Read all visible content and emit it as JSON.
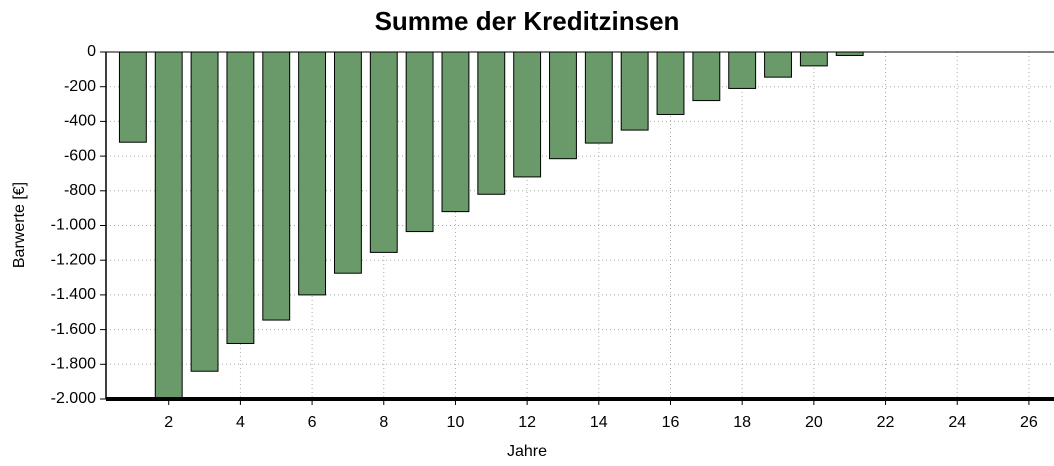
{
  "chart_data": {
    "type": "bar",
    "title": "Summe der Kreditzinsen",
    "x_label": "Jahre",
    "y_label": "Barwerte [€]",
    "x": [
      1,
      2,
      3,
      4,
      5,
      6,
      7,
      8,
      9,
      10,
      11,
      12,
      13,
      14,
      15,
      16,
      17,
      18,
      19,
      20,
      21
    ],
    "values": [
      -520,
      -2000,
      -1840,
      -1680,
      -1545,
      -1400,
      -1275,
      -1155,
      -1035,
      -920,
      -820,
      -720,
      -615,
      -525,
      -450,
      -360,
      -280,
      -210,
      -145,
      -80,
      -20
    ],
    "color": "#6a9a6a",
    "xlim": [
      0.25,
      26.7
    ],
    "xticks": [
      2,
      4,
      6,
      8,
      10,
      12,
      14,
      16,
      18,
      20,
      22,
      24,
      26
    ],
    "ylim": [
      -2000,
      0
    ],
    "yticks": [
      0,
      -200,
      -400,
      -600,
      -800,
      {
        "value": -1000,
        "label": "-1.000"
      },
      {
        "value": -1200,
        "label": "-1.200"
      },
      {
        "value": -1400,
        "label": "-1.400"
      },
      {
        "value": -1600,
        "label": "-1.600"
      },
      {
        "value": -1800,
        "label": "-1.800"
      },
      {
        "value": -2000,
        "label": "-2.000"
      }
    ],
    "grid": true
  }
}
